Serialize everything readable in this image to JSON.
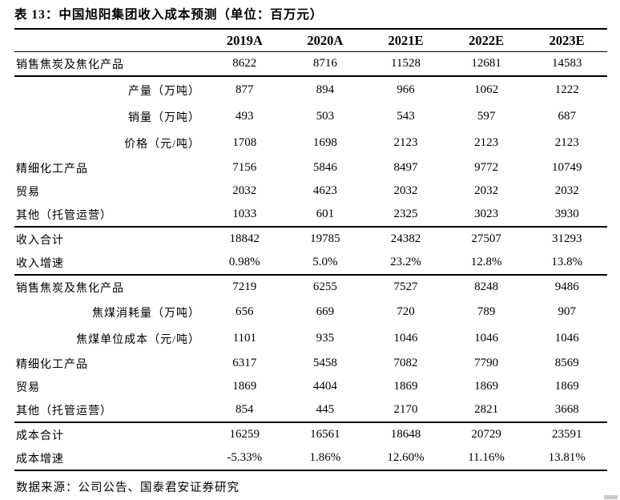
{
  "page": {
    "title": "表 13：中国旭阳集团收入成本预测（单位：百万元）",
    "footer": "数据来源：公司公告、国泰君安证券研究"
  },
  "colors": {
    "text": "#000000",
    "background": "#ffffff",
    "rule_lines": "#000000",
    "corner_mark": "#c9c9c9"
  },
  "table": {
    "columns": [
      "2019A",
      "2020A",
      "2021E",
      "2022E",
      "2023E"
    ],
    "rows": [
      {
        "label": "销售焦炭及焦化产品",
        "indent": false,
        "rule_below": true,
        "rule_above": false,
        "values": [
          "8622",
          "8716",
          "11528",
          "12681",
          "14583"
        ]
      },
      {
        "label": "产量（万吨）",
        "indent": true,
        "rule_below": false,
        "rule_above": false,
        "values": [
          "877",
          "894",
          "966",
          "1062",
          "1222"
        ]
      },
      {
        "label": "销量（万吨）",
        "indent": true,
        "rule_below": false,
        "rule_above": false,
        "values": [
          "493",
          "503",
          "543",
          "597",
          "687"
        ]
      },
      {
        "label": "价格（元/吨）",
        "indent": true,
        "rule_below": false,
        "rule_above": false,
        "values": [
          "1708",
          "1698",
          "2123",
          "2123",
          "2123"
        ]
      },
      {
        "label": "精细化工产品",
        "indent": false,
        "rule_below": false,
        "rule_above": false,
        "values": [
          "7156",
          "5846",
          "8497",
          "9772",
          "10749"
        ]
      },
      {
        "label": "贸易",
        "indent": false,
        "rule_below": false,
        "rule_above": false,
        "values": [
          "2032",
          "4623",
          "2032",
          "2032",
          "2032"
        ]
      },
      {
        "label": "其他（托管运营）",
        "indent": false,
        "rule_below": false,
        "rule_above": false,
        "values": [
          "1033",
          "601",
          "2325",
          "3023",
          "3930"
        ]
      },
      {
        "label": "收入合计",
        "indent": false,
        "rule_below": false,
        "rule_above": true,
        "values": [
          "18842",
          "19785",
          "24382",
          "27507",
          "31293"
        ]
      },
      {
        "label": "收入增速",
        "indent": false,
        "rule_below": false,
        "rule_above": false,
        "values": [
          "0.98%",
          "5.0%",
          "23.2%",
          "12.8%",
          "13.8%"
        ]
      },
      {
        "label": "销售焦炭及焦化产品",
        "indent": false,
        "rule_below": false,
        "rule_above": true,
        "values": [
          "7219",
          "6255",
          "7527",
          "8248",
          "9486"
        ]
      },
      {
        "label": "焦煤消耗量（万吨）",
        "indent": true,
        "rule_below": false,
        "rule_above": false,
        "values": [
          "656",
          "669",
          "720",
          "789",
          "907"
        ]
      },
      {
        "label": "焦煤单位成本（元/吨）",
        "indent": true,
        "rule_below": false,
        "rule_above": false,
        "values": [
          "1101",
          "935",
          "1046",
          "1046",
          "1046"
        ]
      },
      {
        "label": "精细化工产品",
        "indent": false,
        "rule_below": false,
        "rule_above": false,
        "values": [
          "6317",
          "5458",
          "7082",
          "7790",
          "8569"
        ]
      },
      {
        "label": "贸易",
        "indent": false,
        "rule_below": false,
        "rule_above": false,
        "values": [
          "1869",
          "4404",
          "1869",
          "1869",
          "1869"
        ]
      },
      {
        "label": "其他（托管运营）",
        "indent": false,
        "rule_below": false,
        "rule_above": false,
        "values": [
          "854",
          "445",
          "2170",
          "2821",
          "3668"
        ]
      },
      {
        "label": "成本合计",
        "indent": false,
        "rule_below": false,
        "rule_above": true,
        "values": [
          "16259",
          "16561",
          "18648",
          "20729",
          "23591"
        ]
      },
      {
        "label": "成本增速",
        "indent": false,
        "rule_below": false,
        "rule_above": false,
        "values": [
          "-5.33%",
          "1.86%",
          "12.60%",
          "11.16%",
          "13.81%"
        ]
      }
    ]
  }
}
